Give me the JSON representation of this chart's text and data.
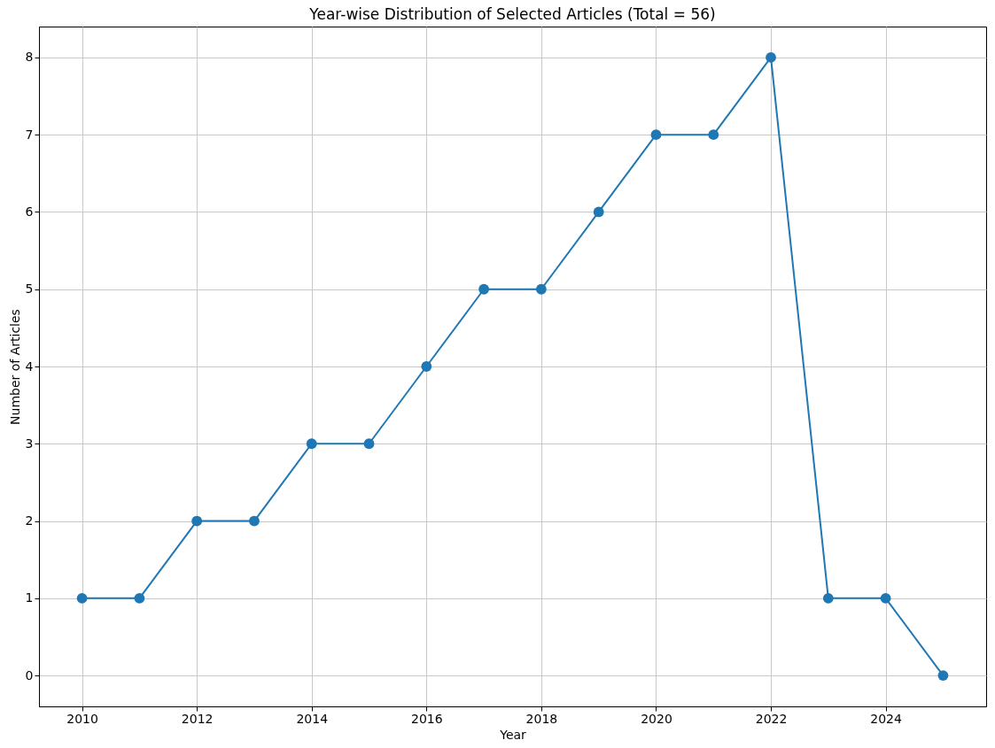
{
  "chart_data": {
    "type": "line",
    "title": "Year-wise Distribution of Selected Articles (Total = 56)",
    "xlabel": "Year",
    "ylabel": "Number of Articles",
    "x": [
      2010,
      2011,
      2012,
      2013,
      2014,
      2015,
      2016,
      2017,
      2018,
      2019,
      2020,
      2021,
      2022,
      2023,
      2024,
      2025
    ],
    "series": [
      {
        "color": "#1f77b4",
        "values": [
          1,
          1,
          2,
          2,
          3,
          3,
          4,
          5,
          5,
          6,
          7,
          7,
          8,
          1,
          1,
          0
        ]
      }
    ],
    "xlim": [
      2009.25,
      2025.75
    ],
    "xticks": [
      2010,
      2012,
      2014,
      2016,
      2018,
      2020,
      2022,
      2024
    ],
    "ylim": [
      -0.4,
      8.4
    ],
    "yticks": [
      0,
      1,
      2,
      3,
      4,
      5,
      6,
      7,
      8
    ],
    "grid": true,
    "marker": "circle",
    "line_style": "solid"
  }
}
